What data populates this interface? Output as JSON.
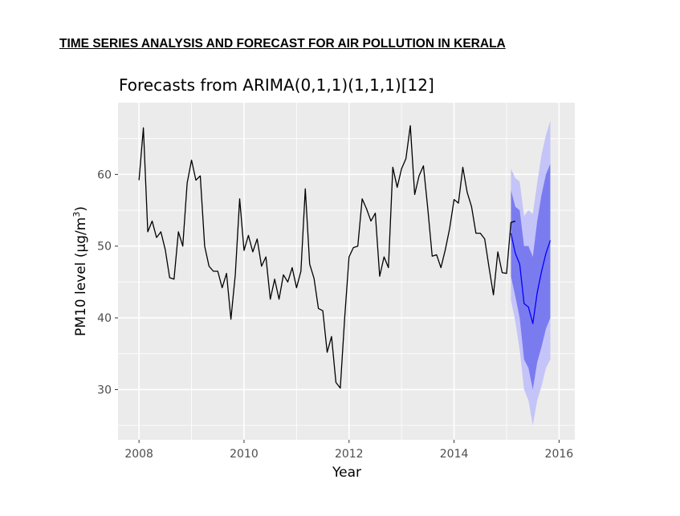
{
  "document": {
    "heading": "TIME SERIES ANALYSIS AND FORECAST FOR AIR POLLUTION IN KERALA"
  },
  "chart_data": {
    "type": "line",
    "title": "Forecasts from ARIMA(0,1,1)(1,1,1)[12]",
    "xlabel": "Year",
    "ylabel": "PM10 level (μg/m³)",
    "ylabel_parts": {
      "main": "PM10 level (μg/m",
      "sup": "3",
      "close": ")"
    },
    "xlim": [
      2007.6,
      2016.3
    ],
    "ylim": [
      23,
      70
    ],
    "x_ticks": [
      2008,
      2010,
      2012,
      2014,
      2016
    ],
    "x_tick_labels": [
      "2008",
      "2010",
      "2012",
      "2014",
      "2016"
    ],
    "y_ticks": [
      30,
      40,
      50,
      60
    ],
    "y_tick_labels": [
      "30",
      "40",
      "50",
      "60"
    ],
    "grid": true,
    "panel_background": "#ebebeb",
    "colors": {
      "observed": "#000000",
      "forecast": "#0000ff",
      "band_80": "#7b7bf0",
      "band_95": "#c4c4f8",
      "grid": "#ffffff"
    },
    "series": [
      {
        "start": 2008.0,
        "frequency": 12,
        "values": [
          59.2,
          66.5,
          52.0,
          53.5,
          51.2,
          52.0,
          49.5,
          45.6,
          45.4,
          52.0,
          50.0,
          58.8,
          62.0,
          59.2,
          59.8,
          50.0,
          47.2,
          46.5,
          46.5,
          44.2,
          46.2,
          39.8,
          46.0,
          56.6,
          49.4,
          51.5,
          49.2,
          51.0,
          47.2,
          48.5,
          42.6,
          45.4,
          42.6,
          46.0,
          45.0,
          47.0,
          44.2,
          46.5,
          58.0,
          47.5,
          45.5,
          41.3,
          41.0,
          35.2,
          37.4,
          31.0,
          30.2,
          40.0,
          48.5,
          49.8,
          50.0,
          56.6,
          55.2,
          53.5,
          54.6,
          45.8,
          48.5,
          47.0,
          61.0,
          58.2,
          60.8,
          62.2,
          66.8,
          57.2,
          59.8,
          61.2,
          55.2,
          48.6,
          48.8,
          47.0,
          49.5,
          52.5,
          56.5,
          56.0,
          61.0,
          57.5,
          55.5,
          51.8,
          51.8,
          51.0,
          47.0,
          43.2,
          49.2,
          46.3,
          46.2,
          53.3,
          53.5
        ]
      },
      {
        "start": 2015.0833,
        "frequency": 12,
        "point_forecast": [
          51.8,
          49.0,
          47.5,
          42.0,
          41.5,
          39.2,
          43.5,
          46.5,
          49.0,
          50.8
        ],
        "lo80": [
          45.8,
          43.0,
          40.0,
          34.2,
          33.0,
          30.0,
          33.8,
          36.0,
          38.5,
          40.0
        ],
        "hi80": [
          57.8,
          55.5,
          55.0,
          50.0,
          50.0,
          48.5,
          53.5,
          57.2,
          60.0,
          61.5
        ],
        "lo95": [
          42.5,
          39.5,
          35.5,
          30.0,
          28.5,
          25.0,
          28.5,
          30.5,
          33.0,
          34.2
        ],
        "hi95": [
          60.8,
          59.5,
          59.0,
          54.2,
          55.0,
          54.5,
          58.8,
          62.8,
          65.5,
          67.5
        ]
      }
    ]
  }
}
